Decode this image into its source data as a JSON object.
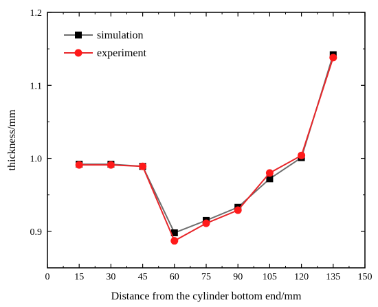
{
  "chart_data": {
    "type": "line",
    "title": "",
    "xlabel": "Distance from the cylinder bottom end/mm",
    "ylabel": "thickness/mm",
    "xlim": [
      0,
      150
    ],
    "ylim": [
      0.85,
      1.2
    ],
    "grid": false,
    "legend_position": "top-left",
    "x": [
      15,
      30,
      45,
      60,
      75,
      90,
      105,
      120,
      135
    ],
    "x_ticks": [
      "0",
      "15",
      "30",
      "45",
      "60",
      "75",
      "90",
      "105",
      "120",
      "135",
      "150"
    ],
    "x_tick_values": [
      0,
      15,
      30,
      45,
      60,
      75,
      90,
      105,
      120,
      135,
      150
    ],
    "y_ticks": [
      "0.9",
      "1.0",
      "1.1",
      "1.2"
    ],
    "y_tick_values": [
      0.9,
      1.0,
      1.1,
      1.2
    ],
    "series": [
      {
        "name": "simulation",
        "color": "#6e6e6e",
        "marker_color": "#000000",
        "marker": "square",
        "values": [
          0.992,
          0.992,
          0.989,
          0.898,
          0.915,
          0.933,
          0.972,
          1.001,
          1.142
        ]
      },
      {
        "name": "experiment",
        "color": "#e8262a",
        "marker_color": "#ff1a1a",
        "marker": "circle",
        "values": [
          0.991,
          0.991,
          0.989,
          0.887,
          0.911,
          0.929,
          0.98,
          1.004,
          1.138
        ]
      }
    ]
  }
}
